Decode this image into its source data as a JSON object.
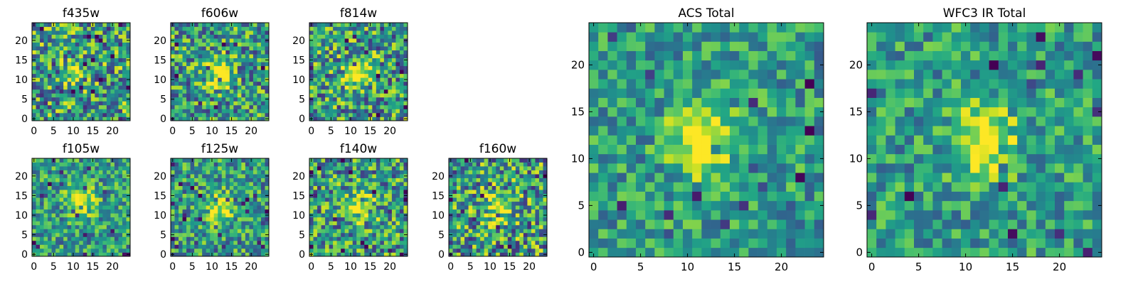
{
  "chart_data": [
    {
      "id": "f435w",
      "type": "heatmap",
      "title": "f435w",
      "size": "small",
      "grid_size": 25,
      "xticks": [
        0,
        5,
        10,
        15,
        20
      ],
      "yticks": [
        0,
        5,
        10,
        15,
        20
      ],
      "xlim": [
        -0.5,
        24.5
      ],
      "ylim": [
        -0.5,
        24.5
      ],
      "colormap": "viridis",
      "source_brightness": 0.35,
      "noise": 0.42,
      "seed": 11,
      "source_center": [
        11,
        11
      ]
    },
    {
      "id": "f606w",
      "type": "heatmap",
      "title": "f606w",
      "size": "small",
      "grid_size": 25,
      "xticks": [
        0,
        5,
        10,
        15,
        20
      ],
      "yticks": [
        0,
        5,
        10,
        15,
        20
      ],
      "xlim": [
        -0.5,
        24.5
      ],
      "ylim": [
        -0.5,
        24.5
      ],
      "colormap": "viridis",
      "source_brightness": 0.55,
      "noise": 0.38,
      "seed": 23,
      "source_center": [
        12,
        12
      ]
    },
    {
      "id": "f814w",
      "type": "heatmap",
      "title": "f814w",
      "size": "small",
      "grid_size": 25,
      "xticks": [
        0,
        5,
        10,
        15,
        20
      ],
      "yticks": [
        0,
        5,
        10,
        15,
        20
      ],
      "xlim": [
        -0.5,
        24.5
      ],
      "ylim": [
        -0.5,
        24.5
      ],
      "colormap": "viridis",
      "source_brightness": 0.55,
      "noise": 0.4,
      "seed": 37,
      "source_center": [
        12,
        12
      ]
    },
    {
      "id": "f105w",
      "type": "heatmap",
      "title": "f105w",
      "size": "small",
      "grid_size": 25,
      "xticks": [
        0,
        5,
        10,
        15,
        20
      ],
      "yticks": [
        0,
        5,
        10,
        15,
        20
      ],
      "xlim": [
        -0.5,
        24.5
      ],
      "ylim": [
        -0.5,
        24.5
      ],
      "colormap": "viridis",
      "source_brightness": 0.5,
      "noise": 0.3,
      "seed": 41,
      "source_center": [
        12,
        14
      ]
    },
    {
      "id": "f125w",
      "type": "heatmap",
      "title": "f125w",
      "size": "small",
      "grid_size": 25,
      "xticks": [
        0,
        5,
        10,
        15,
        20
      ],
      "yticks": [
        0,
        5,
        10,
        15,
        20
      ],
      "xlim": [
        -0.5,
        24.5
      ],
      "ylim": [
        -0.5,
        24.5
      ],
      "colormap": "viridis",
      "source_brightness": 0.45,
      "noise": 0.32,
      "seed": 53,
      "source_center": [
        12,
        12
      ]
    },
    {
      "id": "f140w",
      "type": "heatmap",
      "title": "f140w",
      "size": "small",
      "grid_size": 25,
      "xticks": [
        0,
        5,
        10,
        15,
        20
      ],
      "yticks": [
        0,
        5,
        10,
        15,
        20
      ],
      "xlim": [
        -0.5,
        24.5
      ],
      "ylim": [
        -0.5,
        24.5
      ],
      "colormap": "viridis",
      "source_brightness": 0.5,
      "noise": 0.38,
      "seed": 67,
      "source_center": [
        13,
        12
      ]
    },
    {
      "id": "f160w",
      "type": "heatmap",
      "title": "f160w",
      "size": "small",
      "grid_size": 25,
      "xticks": [
        0,
        5,
        10,
        15,
        20
      ],
      "yticks": [
        0,
        5,
        10,
        15,
        20
      ],
      "xlim": [
        -0.5,
        24.5
      ],
      "ylim": [
        -0.5,
        24.5
      ],
      "colormap": "viridis",
      "source_brightness": 0.45,
      "noise": 0.42,
      "seed": 79,
      "source_center": [
        12,
        12
      ]
    },
    {
      "id": "acs_total",
      "type": "heatmap",
      "title": "ACS Total",
      "size": "large",
      "grid_size": 25,
      "xticks": [
        0,
        5,
        10,
        15,
        20
      ],
      "yticks": [
        0,
        5,
        10,
        15,
        20
      ],
      "xlim": [
        -0.5,
        24.5
      ],
      "ylim": [
        -0.5,
        24.5
      ],
      "colormap": "viridis",
      "source_brightness": 0.6,
      "noise": 0.26,
      "seed": 97,
      "source_center": [
        11.5,
        12
      ]
    },
    {
      "id": "wfc3_ir_total",
      "type": "heatmap",
      "title": "WFC3 IR Total",
      "size": "large",
      "grid_size": 25,
      "xticks": [
        0,
        5,
        10,
        15,
        20
      ],
      "yticks": [
        0,
        5,
        10,
        15,
        20
      ],
      "xlim": [
        -0.5,
        24.5
      ],
      "ylim": [
        -0.5,
        24.5
      ],
      "colormap": "viridis",
      "source_brightness": 0.55,
      "noise": 0.26,
      "seed": 113,
      "source_center": [
        12,
        12
      ]
    }
  ]
}
